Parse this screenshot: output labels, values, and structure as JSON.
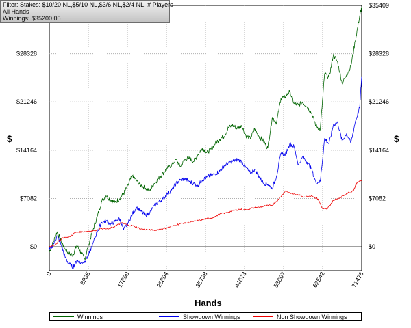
{
  "filter": {
    "line1": "Filter: Stakes: $10/20 NL,$5/10 NL,$3/6 NL,$2/4 NL, # Players",
    "line2": "All Hands",
    "line3": "Winnings: $35200.05"
  },
  "chart_data": {
    "type": "line",
    "title": "",
    "xlabel": "Hands",
    "ylabel": "$",
    "xlim": [
      0,
      71476
    ],
    "ylim": [
      -3500,
      35409
    ],
    "x_ticks": [
      "0",
      "8935",
      "17869",
      "26804",
      "35738",
      "44673",
      "53607",
      "62542",
      "71476"
    ],
    "x_tick_values": [
      0,
      8935,
      17869,
      26804,
      35738,
      44673,
      53607,
      62542,
      71476
    ],
    "y_ticks": [
      "$0",
      "$7082",
      "$14164",
      "$21246",
      "$28328",
      "$35409"
    ],
    "y_tick_values": [
      0,
      7082,
      14164,
      21246,
      28328,
      35409
    ],
    "grid": true,
    "legend_position": "bottom",
    "series": [
      {
        "name": "Winnings",
        "color": "#006400",
        "x": [
          0,
          900,
          1800,
          2700,
          3600,
          4500,
          5400,
          6300,
          7200,
          8100,
          9000,
          10000,
          11000,
          12000,
          13000,
          14000,
          15000,
          16000,
          17000,
          18000,
          19000,
          20000,
          21000,
          22000,
          23000,
          24000,
          25000,
          26000,
          27000,
          28000,
          29000,
          30000,
          31000,
          32000,
          33000,
          34000,
          35000,
          36000,
          37000,
          38000,
          39000,
          40000,
          41000,
          42000,
          43000,
          44000,
          45000,
          46000,
          47000,
          48000,
          49000,
          50000,
          51000,
          52000,
          53000,
          54000,
          55000,
          56000,
          57000,
          58000,
          59000,
          60000,
          61000,
          62000,
          63000,
          64000,
          65000,
          66000,
          67000,
          68000,
          69000,
          70000,
          71000,
          71476
        ],
        "values": [
          -800,
          700,
          2200,
          800,
          -300,
          -1000,
          -1200,
          200,
          -800,
          -1800,
          300,
          2500,
          4500,
          6700,
          7500,
          6900,
          6500,
          7000,
          7800,
          9000,
          10500,
          9700,
          9000,
          8600,
          8200,
          9300,
          10000,
          10800,
          11500,
          12000,
          12800,
          11800,
          12800,
          13000,
          12500,
          13500,
          14500,
          13800,
          14300,
          15200,
          15800,
          16200,
          17500,
          17800,
          17400,
          17800,
          16300,
          15900,
          17300,
          16200,
          15500,
          14500,
          19000,
          18200,
          21800,
          22000,
          22800,
          21000,
          20800,
          21200,
          20500,
          19600,
          17800,
          17200,
          25400,
          24800,
          28200,
          27000,
          24000,
          25200,
          26500,
          30200,
          33800,
          35200
        ]
      },
      {
        "name": "Showdown Winnings",
        "color": "#0000ee",
        "x": [
          0,
          900,
          1800,
          2700,
          3600,
          4500,
          5400,
          6300,
          7200,
          8100,
          9000,
          10000,
          11000,
          12000,
          13000,
          14000,
          15000,
          16000,
          17000,
          18000,
          19000,
          20000,
          21000,
          22000,
          23000,
          24000,
          25000,
          26000,
          27000,
          28000,
          29000,
          30000,
          31000,
          32000,
          33000,
          34000,
          35000,
          36000,
          37000,
          38000,
          39000,
          40000,
          41000,
          42000,
          43000,
          44000,
          45000,
          46000,
          47000,
          48000,
          49000,
          50000,
          51000,
          52000,
          53000,
          54000,
          55000,
          56000,
          57000,
          58000,
          59000,
          60000,
          61000,
          62000,
          63000,
          64000,
          65000,
          66000,
          67000,
          68000,
          69000,
          70000,
          71000,
          71476
        ],
        "values": [
          -500,
          300,
          1600,
          300,
          -1500,
          -2500,
          -3000,
          -2000,
          -2400,
          -2100,
          -1200,
          500,
          2300,
          3600,
          3800,
          3300,
          3700,
          4200,
          2500,
          3500,
          4800,
          5800,
          5200,
          4600,
          5000,
          6000,
          6600,
          7000,
          7800,
          8300,
          9300,
          9800,
          10000,
          9600,
          9300,
          9000,
          9800,
          10200,
          10500,
          10700,
          11100,
          11900,
          12300,
          12600,
          12800,
          12500,
          11600,
          10800,
          11400,
          10300,
          9300,
          9200,
          8500,
          10400,
          13700,
          13500,
          15100,
          14700,
          12000,
          13200,
          12400,
          11400,
          9400,
          9600,
          15900,
          15100,
          17900,
          18200,
          15500,
          16600,
          15200,
          18300,
          20400,
          25000
        ]
      },
      {
        "name": "Non Showdown Winnings",
        "color": "#ee0000",
        "x": [
          0,
          1500,
          3000,
          4500,
          6000,
          7500,
          9000,
          10500,
          12000,
          13500,
          15000,
          16500,
          18000,
          19500,
          21000,
          22500,
          24000,
          25500,
          27000,
          28500,
          30000,
          31500,
          33000,
          34500,
          36000,
          37500,
          39000,
          40500,
          42000,
          43500,
          45000,
          46500,
          48000,
          49500,
          51000,
          52500,
          54000,
          55500,
          57000,
          58500,
          60000,
          61500,
          62500,
          63500,
          65000,
          66500,
          68000,
          69500,
          70500,
          71476
        ],
        "values": [
          0,
          400,
          1300,
          1400,
          2100,
          2200,
          2300,
          2400,
          2700,
          2600,
          3000,
          3500,
          3200,
          3000,
          2600,
          2500,
          2400,
          2600,
          2800,
          3100,
          3400,
          3500,
          3700,
          3900,
          4100,
          4300,
          4800,
          5000,
          5300,
          5500,
          5400,
          5700,
          5800,
          6000,
          6100,
          7000,
          8200,
          7800,
          7600,
          7300,
          7500,
          7000,
          5600,
          5500,
          6800,
          7200,
          7800,
          8200,
          9500,
          9800
        ]
      }
    ]
  }
}
